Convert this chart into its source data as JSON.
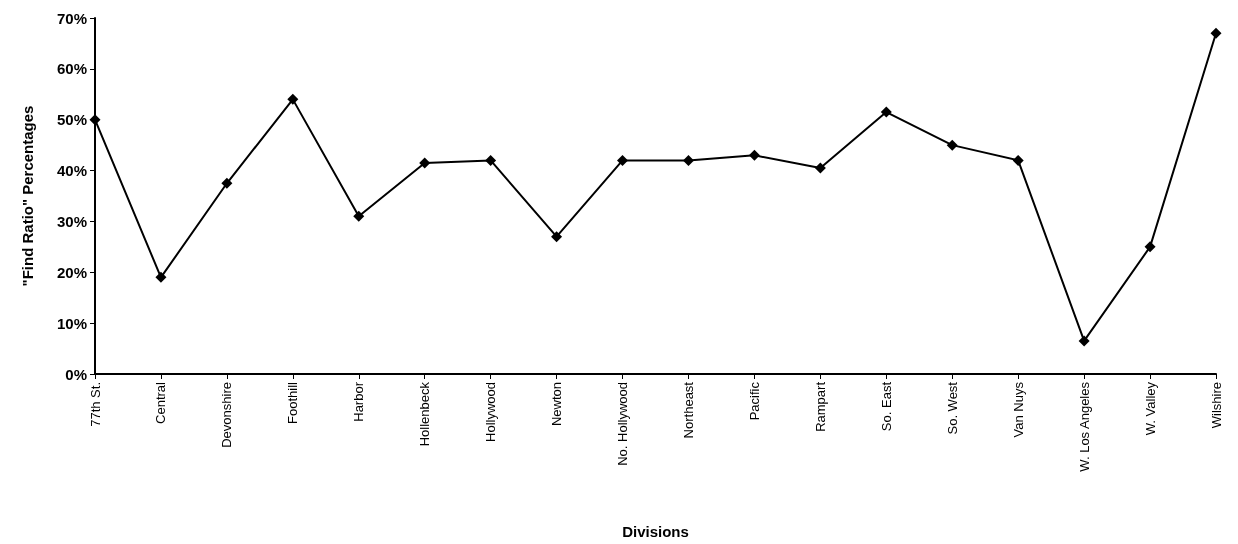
{
  "chart_data": {
    "type": "line",
    "xlabel": "Divisions",
    "ylabel": "\"Find Ratio\" Percentages",
    "categories": [
      "77th St.",
      "Central",
      "Devonshire",
      "Foothill",
      "Harbor",
      "Hollenbeck",
      "Hollywood",
      "Newton",
      "No. Hollywood",
      "Northeast",
      "Pacific",
      "Rampart",
      "So. East",
      "So. West",
      "Van Nuys",
      "W. Los Angeles",
      "W. Valley",
      "Wilshire"
    ],
    "series": [
      {
        "color": "#000000",
        "values": [
          50,
          19,
          37.5,
          54,
          31,
          41.5,
          42,
          27,
          42,
          42,
          43,
          40.5,
          51.5,
          45,
          42,
          6.5,
          25,
          67
        ]
      }
    ],
    "ylim": [
      0,
      70
    ],
    "yticks": [
      {
        "value": 0,
        "label": "0%"
      },
      {
        "value": 10,
        "label": "10%"
      },
      {
        "value": 20,
        "label": "20%"
      },
      {
        "value": 30,
        "label": "30%"
      },
      {
        "value": 40,
        "label": "40%"
      },
      {
        "value": 50,
        "label": "50%"
      },
      {
        "value": 60,
        "label": "60%"
      },
      {
        "value": 70,
        "label": "70%"
      }
    ],
    "grid": false,
    "marker": "diamond",
    "line_style": "solid"
  }
}
